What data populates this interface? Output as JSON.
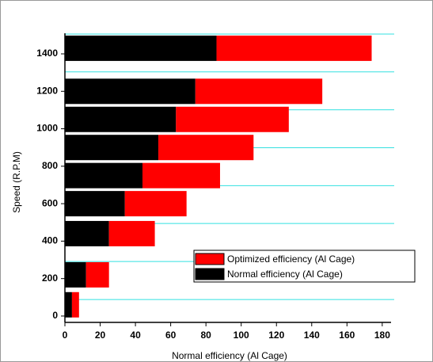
{
  "chart_data": {
    "type": "stacked-barh",
    "x_label": "Normal efficiency (Al Cage)",
    "y_label": "Speed  (R.P.M)",
    "y": [
      60,
      220,
      440,
      600,
      750,
      900,
      1050,
      1200,
      1430
    ],
    "series": [
      {
        "name": "Normal efficiency (Al Cage)",
        "color": "#000000",
        "values": [
          4,
          12,
          25,
          34,
          44,
          53,
          63,
          74,
          86
        ]
      },
      {
        "name": "Optimized efficiency (Al Cage)",
        "color": "#ff0000",
        "values": [
          4,
          13,
          26,
          35,
          44,
          54,
          64,
          72,
          88
        ]
      }
    ],
    "xlim": [
      0,
      185
    ],
    "xticks": [
      0,
      20,
      40,
      60,
      80,
      100,
      120,
      140,
      160,
      180
    ],
    "ylim": [
      -34,
      1510
    ],
    "yticks": [
      0,
      200,
      400,
      600,
      800,
      1000,
      1200,
      1400
    ],
    "ygrid": [
      88,
      291,
      494,
      696,
      899,
      1101,
      1304,
      1506
    ],
    "grid_color": "#33e0e0"
  }
}
